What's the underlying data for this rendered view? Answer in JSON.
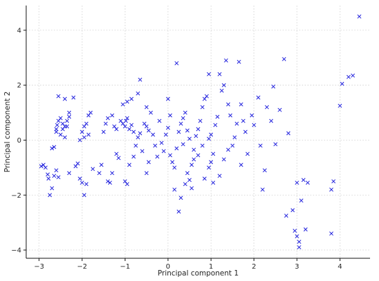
{
  "chart_data": {
    "type": "scatter",
    "xlabel": "Principal component 1",
    "ylabel": "Principal component 2",
    "xlim": [
      -3.3,
      4.7
    ],
    "ylim": [
      -4.3,
      4.9
    ],
    "xticks": [
      -3,
      -2,
      -1,
      0,
      1,
      2,
      3,
      4
    ],
    "yticks": [
      -4,
      -2,
      0,
      2,
      4
    ],
    "grid": true,
    "marker": "x",
    "marker_color": "#2222dd",
    "series": [
      {
        "points": [
          [
            -2.95,
            -0.95
          ],
          [
            -2.9,
            -0.9
          ],
          [
            -2.85,
            -1.0
          ],
          [
            -2.8,
            -1.25
          ],
          [
            -2.78,
            -1.4
          ],
          [
            -2.75,
            -2.0
          ],
          [
            -2.7,
            -1.75
          ],
          [
            -2.65,
            -1.3
          ],
          [
            -2.6,
            -1.1
          ],
          [
            -2.55,
            -1.35
          ],
          [
            -2.7,
            -0.3
          ],
          [
            -2.65,
            -0.25
          ],
          [
            -2.6,
            0.4
          ],
          [
            -2.58,
            0.55
          ],
          [
            -2.55,
            0.7
          ],
          [
            -2.5,
            0.8
          ],
          [
            -2.45,
            0.6
          ],
          [
            -2.4,
            0.5
          ],
          [
            -2.35,
            0.7
          ],
          [
            -2.3,
            0.85
          ],
          [
            -2.5,
            0.2
          ],
          [
            -2.45,
            0.4
          ],
          [
            -2.6,
            0.3
          ],
          [
            -2.4,
            0.1
          ],
          [
            -2.35,
            0.5
          ],
          [
            -2.3,
            1.0
          ],
          [
            -2.55,
            1.6
          ],
          [
            -2.4,
            1.5
          ],
          [
            -2.2,
            1.55
          ],
          [
            -2.3,
            -1.2
          ],
          [
            -2.15,
            -0.95
          ],
          [
            -2.1,
            -0.85
          ],
          [
            -2.05,
            -1.4
          ],
          [
            -2.0,
            -1.55
          ],
          [
            -1.95,
            -2.0
          ],
          [
            -1.9,
            -1.6
          ],
          [
            -2.0,
            0.3
          ],
          [
            -1.95,
            0.5
          ],
          [
            -1.9,
            0.6
          ],
          [
            -1.85,
            0.9
          ],
          [
            -1.8,
            1.0
          ],
          [
            -2.05,
            0.0
          ],
          [
            -1.95,
            0.1
          ],
          [
            -1.85,
            0.2
          ],
          [
            -1.75,
            -1.05
          ],
          [
            -1.6,
            -1.2
          ],
          [
            -1.55,
            -0.9
          ],
          [
            -1.5,
            0.3
          ],
          [
            -1.45,
            0.6
          ],
          [
            -1.4,
            0.8
          ],
          [
            -1.4,
            -1.5
          ],
          [
            -1.35,
            -1.55
          ],
          [
            -1.3,
            -1.2
          ],
          [
            -1.3,
            0.9
          ],
          [
            -1.25,
            0.5
          ],
          [
            -1.2,
            0.4
          ],
          [
            -1.2,
            -0.5
          ],
          [
            -1.15,
            -0.65
          ],
          [
            -1.1,
            0.7
          ],
          [
            -1.05,
            0.6
          ],
          [
            -1.0,
            0.5
          ],
          [
            -0.98,
            0.7
          ],
          [
            -0.95,
            0.8
          ],
          [
            -0.9,
            0.4
          ],
          [
            -0.85,
            0.55
          ],
          [
            -0.8,
            0.3
          ],
          [
            -1.0,
            -1.5
          ],
          [
            -0.95,
            -1.6
          ],
          [
            -1.05,
            1.3
          ],
          [
            -0.95,
            1.4
          ],
          [
            -0.85,
            1.5
          ],
          [
            -0.9,
            -0.9
          ],
          [
            -0.8,
            -0.6
          ],
          [
            -0.75,
            -0.2
          ],
          [
            -0.7,
            0.1
          ],
          [
            -0.65,
            0.25
          ],
          [
            -0.6,
            -0.4
          ],
          [
            -0.55,
            0.6
          ],
          [
            -0.5,
            0.5
          ],
          [
            -0.45,
            0.35
          ],
          [
            -0.7,
            1.7
          ],
          [
            -0.65,
            2.2
          ],
          [
            -0.5,
            1.2
          ],
          [
            -0.4,
            1.0
          ],
          [
            -0.35,
            0.2
          ],
          [
            -0.3,
            -0.2
          ],
          [
            -0.25,
            -0.6
          ],
          [
            -0.2,
            0.7
          ],
          [
            -0.15,
            -0.1
          ],
          [
            -0.1,
            -0.4
          ],
          [
            -0.5,
            -1.2
          ],
          [
            -0.45,
            -0.8
          ],
          [
            -0.05,
            0.2
          ],
          [
            0.0,
            0.45
          ],
          [
            0.05,
            0.9
          ],
          [
            0.0,
            1.5
          ],
          [
            0.05,
            -0.55
          ],
          [
            0.1,
            -0.8
          ],
          [
            0.15,
            -1.0
          ],
          [
            0.2,
            -0.3
          ],
          [
            0.25,
            0.3
          ],
          [
            0.3,
            0.6
          ],
          [
            0.35,
            0.8
          ],
          [
            0.2,
            2.8
          ],
          [
            0.4,
            1.0
          ],
          [
            0.45,
            -1.2
          ],
          [
            0.5,
            -1.45
          ],
          [
            0.55,
            -0.9
          ],
          [
            0.6,
            -0.7
          ],
          [
            0.65,
            0.15
          ],
          [
            0.7,
            0.4
          ],
          [
            0.75,
            0.7
          ],
          [
            0.8,
            1.2
          ],
          [
            0.85,
            1.5
          ],
          [
            0.9,
            1.6
          ],
          [
            0.95,
            -1.0
          ],
          [
            1.0,
            -0.8
          ],
          [
            1.05,
            -0.5
          ],
          [
            1.0,
            0.2
          ],
          [
            1.1,
            0.55
          ],
          [
            1.15,
            0.85
          ],
          [
            1.2,
            2.4
          ],
          [
            1.25,
            1.8
          ],
          [
            1.3,
            2.0
          ],
          [
            1.35,
            2.9
          ],
          [
            1.4,
            1.3
          ],
          [
            1.45,
            0.9
          ],
          [
            1.5,
            -0.2
          ],
          [
            1.55,
            0.1
          ],
          [
            1.6,
            0.6
          ],
          [
            1.65,
            2.85
          ],
          [
            1.7,
            1.3
          ],
          [
            1.75,
            0.7
          ],
          [
            1.8,
            0.3
          ],
          [
            0.95,
            2.4
          ],
          [
            0.3,
            -2.1
          ],
          [
            0.25,
            -2.6
          ],
          [
            0.15,
            -1.8
          ],
          [
            0.4,
            -1.6
          ],
          [
            0.55,
            -1.75
          ],
          [
            1.2,
            -1.3
          ],
          [
            1.05,
            -1.55
          ],
          [
            0.85,
            -1.4
          ],
          [
            0.8,
            -0.2
          ],
          [
            0.7,
            -0.55
          ],
          [
            0.6,
            -0.35
          ],
          [
            0.5,
            0.05
          ],
          [
            0.45,
            0.35
          ],
          [
            0.35,
            -0.15
          ],
          [
            0.95,
            0.05
          ],
          [
            2.0,
            0.55
          ],
          [
            2.1,
            1.55
          ],
          [
            2.15,
            -0.2
          ],
          [
            2.2,
            -1.8
          ],
          [
            2.25,
            -1.1
          ],
          [
            2.3,
            1.2
          ],
          [
            2.4,
            0.7
          ],
          [
            2.45,
            1.95
          ],
          [
            2.5,
            -0.15
          ],
          [
            2.6,
            1.1
          ],
          [
            2.7,
            2.95
          ],
          [
            2.75,
            -2.75
          ],
          [
            2.8,
            0.25
          ],
          [
            2.9,
            -2.55
          ],
          [
            2.95,
            -3.3
          ],
          [
            3.0,
            -3.5
          ],
          [
            3.05,
            -3.7
          ],
          [
            3.05,
            -3.9
          ],
          [
            3.1,
            -2.2
          ],
          [
            3.15,
            -1.45
          ],
          [
            3.0,
            -1.55
          ],
          [
            3.2,
            -3.25
          ],
          [
            3.25,
            -1.55
          ],
          [
            3.8,
            -1.8
          ],
          [
            3.8,
            -3.4
          ],
          [
            3.85,
            -1.5
          ],
          [
            4.0,
            1.25
          ],
          [
            4.05,
            2.05
          ],
          [
            4.2,
            2.3
          ],
          [
            4.3,
            2.35
          ],
          [
            4.45,
            4.5
          ],
          [
            1.95,
            0.9
          ],
          [
            1.85,
            -0.5
          ],
          [
            1.7,
            -0.9
          ],
          [
            1.4,
            -0.35
          ],
          [
            1.3,
            -0.7
          ]
        ]
      }
    ]
  }
}
